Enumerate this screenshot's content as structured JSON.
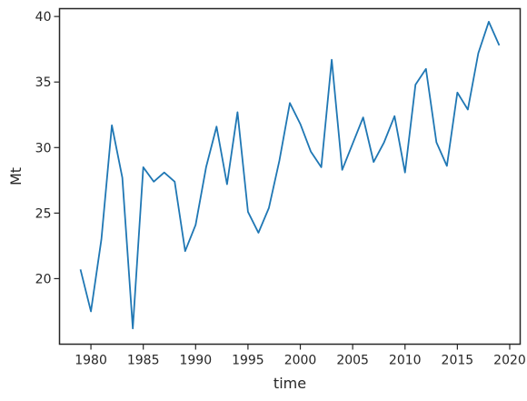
{
  "chart_data": {
    "type": "line",
    "title": "",
    "xlabel": "time",
    "ylabel": "Mt",
    "xlim": [
      1977,
      2021
    ],
    "ylim": [
      15,
      40.6
    ],
    "xticks": [
      1980,
      1985,
      1990,
      1995,
      2000,
      2005,
      2010,
      2015,
      2020
    ],
    "yticks": [
      20,
      25,
      30,
      35,
      40
    ],
    "grid": false,
    "line_color": "#1f77b4",
    "series": [
      {
        "x": [
          1979,
          1980,
          1981,
          1982,
          1983,
          1984,
          1985,
          1986,
          1987,
          1988,
          1989,
          1990,
          1991,
          1992,
          1993,
          1994,
          1995,
          1996,
          1997,
          1998,
          1999,
          2000,
          2001,
          2002,
          2003,
          2004,
          2005,
          2006,
          2007,
          2008,
          2009,
          2010,
          2011,
          2012,
          2013,
          2014,
          2015,
          2016,
          2017,
          2018,
          2019
        ],
        "values": [
          20.7,
          17.5,
          23.0,
          31.7,
          27.7,
          16.2,
          28.5,
          27.4,
          28.1,
          27.4,
          22.1,
          24.1,
          28.5,
          31.6,
          27.2,
          32.7,
          25.1,
          23.5,
          25.4,
          29.0,
          33.4,
          31.8,
          29.7,
          28.5,
          36.7,
          28.3,
          30.3,
          32.3,
          28.9,
          30.4,
          32.4,
          28.1,
          34.8,
          36.0,
          30.4,
          28.6,
          34.2,
          32.9,
          37.2,
          39.6,
          37.8
        ]
      }
    ]
  }
}
